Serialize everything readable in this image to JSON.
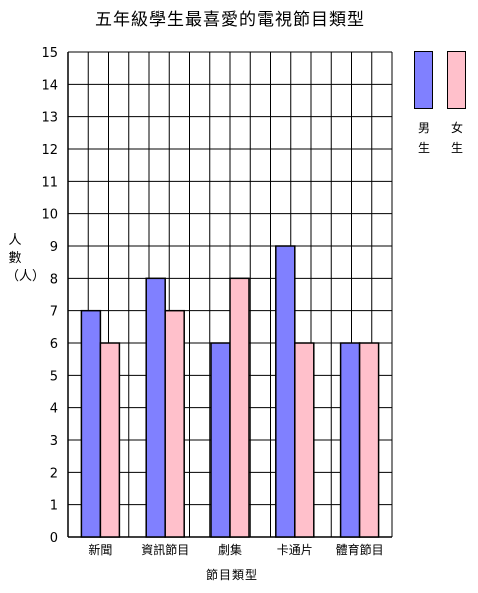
{
  "chart_data": {
    "type": "bar",
    "title": "五年級學生最喜愛的電視節目類型",
    "xlabel": "節目類型",
    "ylabel": "人數（人）",
    "categories": [
      "新聞",
      "資訊節目",
      "劇集",
      "卡通片",
      "體育節目"
    ],
    "series": [
      {
        "name": "男生",
        "color": "#8080ff",
        "values": [
          7,
          8,
          6,
          9,
          6
        ]
      },
      {
        "name": "女生",
        "color": "#ffc0cb",
        "values": [
          6,
          7,
          8,
          6,
          6
        ]
      }
    ],
    "ylim": [
      0,
      15
    ],
    "yticks": [
      0,
      1,
      2,
      3,
      4,
      5,
      6,
      7,
      8,
      9,
      10,
      11,
      12,
      13,
      14,
      15
    ],
    "grid": true,
    "legend_position": "top-right"
  }
}
